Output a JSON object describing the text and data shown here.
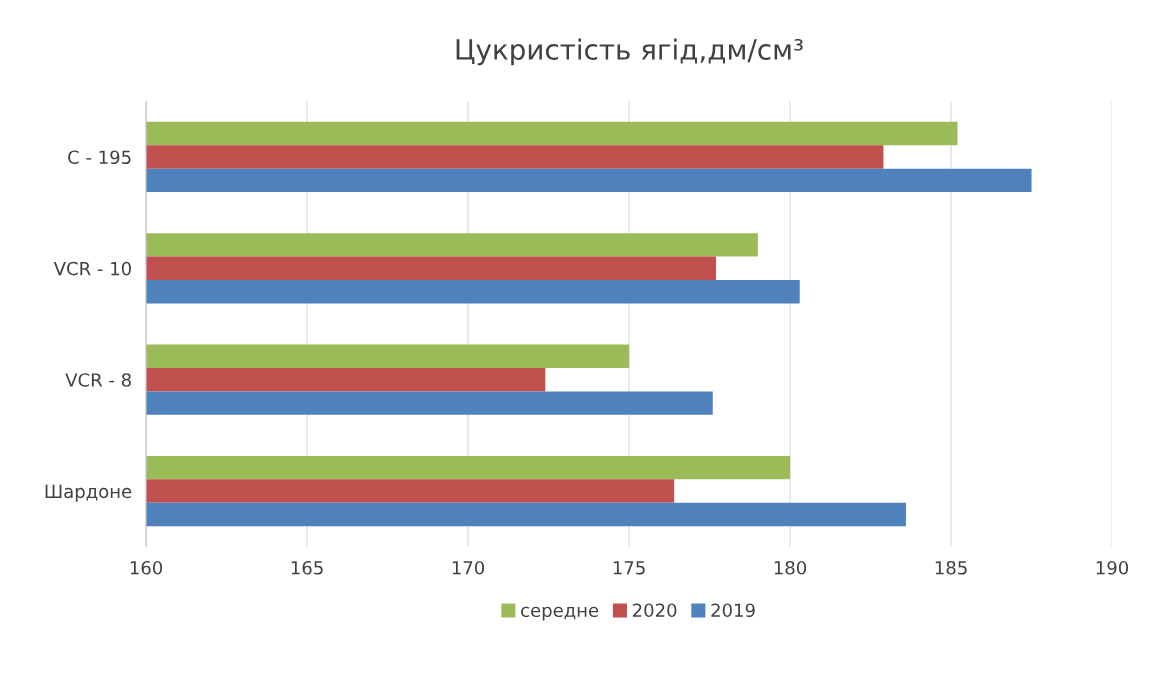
{
  "chart_data": {
    "type": "bar",
    "orientation": "horizontal",
    "title": "Цукристість ягід,дм/см³",
    "categories": [
      "C - 195",
      "VCR - 10",
      "VCR - 8",
      "Шардоне"
    ],
    "series": [
      {
        "name": "середне",
        "color": "#9bbb59",
        "values": [
          185.2,
          179.0,
          175.0,
          180.0
        ]
      },
      {
        "name": "2020",
        "color": "#c0504d",
        "values": [
          182.9,
          177.7,
          172.4,
          176.4
        ]
      },
      {
        "name": "2019",
        "color": "#4f81bd",
        "values": [
          187.5,
          180.3,
          177.6,
          183.6
        ]
      }
    ],
    "xlim": [
      160,
      190
    ],
    "xticks": [
      160,
      165,
      170,
      175,
      180,
      185,
      190
    ],
    "grid": "x",
    "legend": "bottom"
  }
}
